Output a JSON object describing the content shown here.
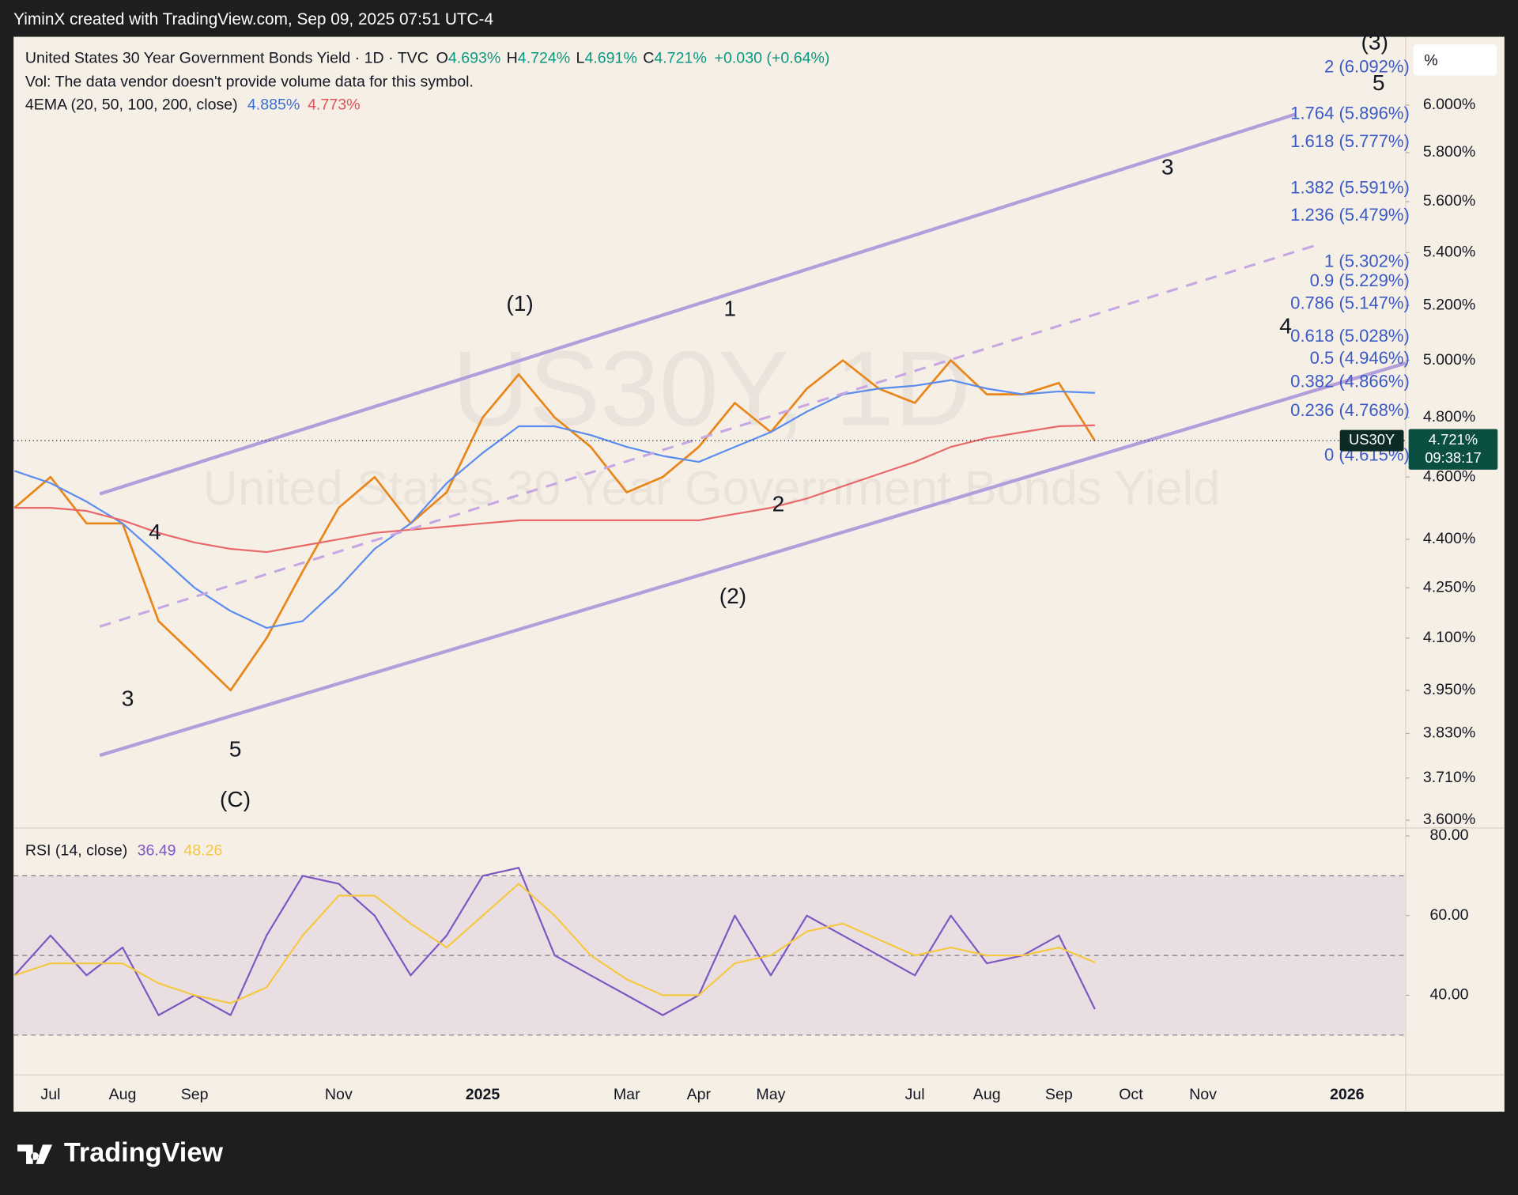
{
  "header": {
    "credit": "YiminX created with TradingView.com, Sep 09, 2025 07:51 UTC-4",
    "symbol": "United States 30 Year Government Bonds Yield · 1D · TVC",
    "ohlc": [
      {
        "label": "O",
        "value": "4.693%"
      },
      {
        "label": "H",
        "value": "4.724%"
      },
      {
        "label": "L",
        "value": "4.691%"
      },
      {
        "label": "C",
        "value": "4.721%"
      }
    ],
    "change": "+0.030 (+0.64%)",
    "vol_note": "Vol: The data vendor doesn't provide volume data for this symbol.",
    "ema_label": "4EMA (20, 50, 100, 200, close)",
    "ema_values": [
      "4.885%",
      "4.773%"
    ],
    "rsi_label": "RSI (14, close)",
    "rsi_values": [
      "36.49",
      "48.26"
    ]
  },
  "watermark": [
    "US30Y, 1D",
    "United States 30 Year Government Bonds Yield"
  ],
  "unit": "%",
  "price_tag": {
    "symbol": "US30Y",
    "price": "4.721%",
    "countdown": "09:38:17"
  },
  "annotations": {
    "waves": [
      "(1)",
      "1",
      "(2)",
      "2",
      "3",
      "4",
      "5",
      "(3)",
      "4",
      "3",
      "5",
      "(C)"
    ],
    "fib_levels": [
      "2 (6.092%)",
      "1.764 (5.896%)",
      "1.618 (5.777%)",
      "1.382 (5.591%)",
      "1.236 (5.479%)",
      "1 (5.302%)",
      "0.9 (5.229%)",
      "0.786 (5.147%)",
      "0.618 (5.028%)",
      "0.5 (4.946%)",
      "0.382 (4.866%)",
      "0.236 (4.768%)",
      "0 (4.615%)"
    ]
  },
  "brand": "TradingView",
  "chart_data": [
    {
      "type": "line",
      "categories": [
        null,
        "Jul",
        null,
        "Aug",
        null,
        "Sep",
        null,
        null,
        null,
        "Nov",
        null,
        null,
        null,
        "2025",
        null,
        null,
        null,
        "Mar",
        null,
        "Apr",
        null,
        "May",
        null,
        null,
        null,
        "Jul",
        null,
        "Aug",
        null,
        "Sep",
        null,
        "Oct",
        null,
        "Nov",
        null,
        null,
        null,
        "2026"
      ],
      "series": [
        {
          "name": "US30Y",
          "color": "#e8861a",
          "values": [
            4.5,
            4.6,
            4.45,
            4.45,
            4.15,
            4.05,
            3.95,
            4.1,
            4.3,
            4.5,
            4.6,
            4.45,
            4.55,
            4.8,
            4.95,
            4.8,
            4.7,
            4.55,
            4.6,
            4.7,
            4.85,
            4.75,
            4.9,
            5.0,
            4.9,
            4.85,
            5.0,
            4.88,
            4.88,
            4.92,
            4.72,
            null,
            null,
            null,
            null,
            null,
            null,
            null
          ]
        },
        {
          "color": "#5b8def",
          "values": [
            4.62,
            4.58,
            4.52,
            4.45,
            4.35,
            4.25,
            4.18,
            4.13,
            4.15,
            4.25,
            4.37,
            4.45,
            4.58,
            4.68,
            4.77,
            4.77,
            4.74,
            4.7,
            4.67,
            4.65,
            4.7,
            4.75,
            4.82,
            4.88,
            4.9,
            4.91,
            4.93,
            4.9,
            4.88,
            4.89,
            4.885,
            null,
            null,
            null,
            null,
            null,
            null,
            null
          ]
        },
        {
          "color": "#e8696b",
          "values": [
            4.5,
            4.5,
            4.49,
            4.46,
            4.42,
            4.39,
            4.37,
            4.36,
            4.38,
            4.4,
            4.42,
            4.43,
            4.44,
            4.45,
            4.46,
            4.46,
            4.46,
            4.46,
            4.46,
            4.46,
            4.48,
            4.5,
            4.53,
            4.57,
            4.61,
            4.65,
            4.7,
            4.73,
            4.75,
            4.77,
            4.773,
            null,
            null,
            null,
            null,
            null,
            null,
            null
          ]
        }
      ],
      "log_scale": true,
      "grid": false,
      "ylim": [
        3.58,
        6.3
      ],
      "yticks": [
        {
          "value": 3.6,
          "label": "3.600%"
        },
        {
          "value": 3.71,
          "label": "3.710%"
        },
        {
          "value": 3.83,
          "label": "3.830%"
        },
        {
          "value": 3.95,
          "label": "3.950%"
        },
        {
          "value": 4.1,
          "label": "4.100%"
        },
        {
          "value": 4.25,
          "label": "4.250%"
        },
        {
          "value": 4.4,
          "label": "4.400%"
        },
        {
          "value": 4.6,
          "label": "4.600%"
        },
        {
          "value": 4.8,
          "label": "4.800%"
        },
        {
          "value": 5.0,
          "label": "5.000%"
        },
        {
          "value": 5.2,
          "label": "5.200%"
        },
        {
          "value": 5.4,
          "label": "5.400%"
        },
        {
          "value": 5.6,
          "label": "5.600%"
        },
        {
          "value": 5.8,
          "label": "5.800%"
        },
        {
          "value": 6.0,
          "label": "6.000%"
        }
      ]
    },
    {
      "type": "line",
      "series": [
        {
          "color": "#7e57c2",
          "values": [
            45,
            55,
            45,
            52,
            35,
            40,
            35,
            55,
            70,
            68,
            60,
            45,
            55,
            70,
            72,
            50,
            45,
            40,
            35,
            40,
            60,
            45,
            60,
            55,
            50,
            45,
            60,
            48,
            50,
            55,
            36.49,
            null,
            null,
            null,
            null,
            null,
            null,
            null
          ]
        },
        {
          "color": "#f5c842",
          "values": [
            45,
            48,
            48,
            48,
            43,
            40,
            38,
            42,
            55,
            65,
            65,
            58,
            52,
            60,
            68,
            60,
            50,
            44,
            40,
            40,
            48,
            50,
            56,
            58,
            54,
            50,
            52,
            50,
            50,
            52,
            48.26,
            null,
            null,
            null,
            null,
            null,
            null,
            null
          ]
        }
      ],
      "hlines": [
        30,
        50,
        70
      ],
      "band_color": "#e9dfe3",
      "grid": false,
      "ylim": [
        20,
        82
      ],
      "yticks": [
        {
          "value": 40,
          "label": "40.00"
        },
        {
          "value": 60,
          "label": "60.00"
        },
        {
          "value": 80,
          "label": "80.00"
        }
      ]
    }
  ]
}
